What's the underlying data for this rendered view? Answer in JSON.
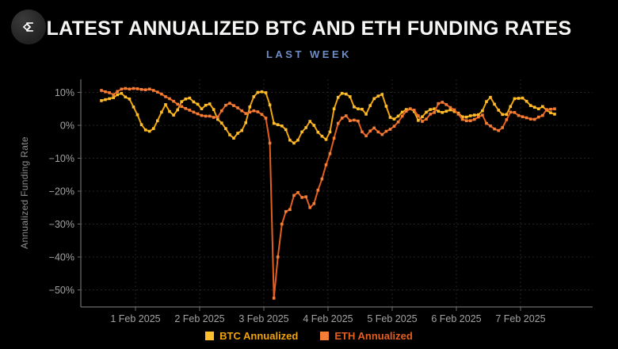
{
  "header": {
    "title": "LATEST ANNUALIZED BTC AND ETH FUNDING RATES",
    "subtitle": "LAST WEEK",
    "logo_icon": "sigma-diamond-logo"
  },
  "colors": {
    "background": "#000000",
    "title_text": "#F6F6F4",
    "subtitle_text": "#6E8DC5",
    "axis_text": "#A3A3A3",
    "axis_title_text": "#8E8E8E",
    "axis_line": "#6E6E6E",
    "gridline": "#242424",
    "btc": "#F0A30A",
    "btc_marker": "#FFBE2E",
    "eth": "#E45E1E",
    "eth_marker": "#F57E36"
  },
  "chart_data": {
    "type": "line",
    "title": "LATEST ANNUALIZED BTC AND ETH FUNDING RATES",
    "subtitle": "LAST WEEK",
    "xlabel": "",
    "ylabel": "Annualized Funding Rate",
    "ylim": [
      -55,
      14
    ],
    "grid": "dotted",
    "legend_position": "bottom-center",
    "y_ticks_percent": [
      10,
      0,
      -10,
      -20,
      -30,
      -40,
      -50
    ],
    "x_tick_labels": [
      "1 Feb 2025",
      "2 Feb 2025",
      "3 Feb 2025",
      "4 Feb 2025",
      "5 Feb 2025",
      "6 Feb 2025",
      "7 Feb 2025"
    ],
    "x_tick_days": [
      0,
      1,
      2,
      3,
      4,
      5,
      6
    ],
    "x_unit": "days from 1 Feb 2025 00:00",
    "x_start_day": -0.53125,
    "x_step_day": 0.0625,
    "series": [
      {
        "name": "BTC Annualized",
        "values_percent": [
          7.5,
          7.8,
          8.1,
          8.4,
          9.3,
          9.7,
          8.6,
          8.0,
          5.6,
          3.2,
          0.2,
          -1.4,
          -1.8,
          -1.0,
          1.4,
          4.0,
          6.3,
          4.2,
          3.1,
          4.7,
          7.2,
          8.0,
          8.3,
          7.1,
          6.4,
          5.0,
          6.1,
          6.5,
          4.8,
          1.8,
          0.7,
          -1.0,
          -2.9,
          -3.9,
          -2.4,
          -1.6,
          0.8,
          5.6,
          8.7,
          10.0,
          10.2,
          9.9,
          6.2,
          0.6,
          0.2,
          -0.2,
          -1.3,
          -4.5,
          -5.4,
          -4.5,
          -2.0,
          -0.7,
          1.2,
          0.0,
          -2.1,
          -3.3,
          -4.3,
          -2.0,
          5.0,
          8.5,
          9.7,
          9.5,
          8.7,
          5.6,
          5.0,
          4.9,
          3.4,
          6.0,
          8.1,
          8.9,
          9.4,
          5.8,
          2.4,
          1.9,
          2.8,
          4.0,
          4.8,
          5.0,
          4.2,
          1.5,
          2.6,
          4.0,
          4.8,
          5.0,
          4.3,
          3.9,
          4.3,
          4.7,
          4.2,
          3.7,
          2.6,
          2.5,
          2.9,
          3.1,
          3.2,
          4.4,
          7.2,
          8.5,
          6.4,
          4.6,
          3.3,
          3.3,
          5.7,
          8.1,
          8.2,
          8.3,
          7.3,
          6.0,
          5.5,
          5.0,
          5.7,
          4.6,
          3.8,
          3.4
        ]
      },
      {
        "name": "ETH Annualized",
        "values_percent": [
          10.6,
          10.2,
          9.9,
          9.3,
          10.3,
          11.0,
          11.2,
          11.0,
          11.2,
          11.1,
          10.9,
          10.8,
          11.0,
          10.6,
          10.1,
          9.5,
          8.7,
          8.1,
          7.3,
          6.4,
          5.7,
          5.1,
          4.6,
          4.0,
          3.5,
          3.0,
          2.8,
          2.8,
          2.4,
          2.5,
          4.4,
          6.1,
          6.7,
          6.0,
          5.3,
          4.4,
          3.6,
          4.0,
          4.4,
          4.1,
          3.3,
          2.2,
          -5.4,
          -52.5,
          -40.0,
          -30.0,
          -26.2,
          -25.6,
          -21.3,
          -20.4,
          -21.9,
          -21.7,
          -25.0,
          -23.8,
          -19.7,
          -16.3,
          -12.0,
          -8.6,
          -3.9,
          0.6,
          2.2,
          2.9,
          1.4,
          1.6,
          1.3,
          -2.0,
          -3.2,
          -1.7,
          -0.8,
          -2.0,
          -2.8,
          -1.8,
          -1.2,
          -0.3,
          1.0,
          2.8,
          4.3,
          5.0,
          4.6,
          2.9,
          1.2,
          1.9,
          3.4,
          3.9,
          6.6,
          7.0,
          6.3,
          5.4,
          4.7,
          3.4,
          1.8,
          1.4,
          1.4,
          1.8,
          2.5,
          3.1,
          0.6,
          -0.2,
          -1.1,
          -1.6,
          -0.7,
          1.7,
          4.0,
          3.9,
          3.0,
          2.6,
          2.3,
          1.9,
          1.8,
          2.5,
          3.0,
          4.8,
          4.9,
          5.0
        ]
      }
    ]
  }
}
